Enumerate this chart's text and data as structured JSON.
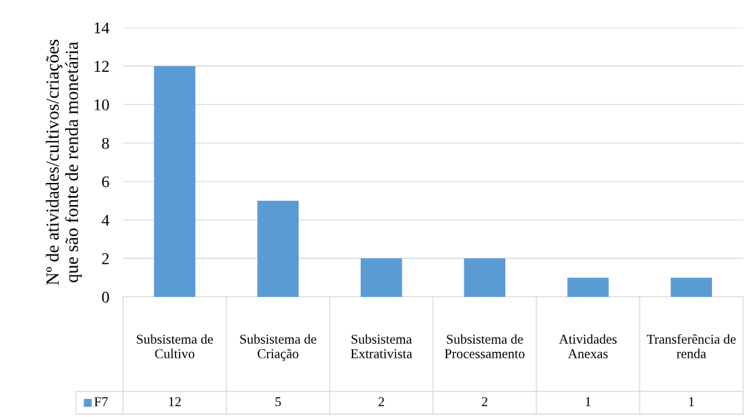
{
  "chart_data": {
    "type": "bar",
    "ylabel": "Nº de atividades/cultivos/criações\nque são fonte de renda monetária",
    "categories": [
      "Subsistema de Cultivo",
      "Subsistema de Criação",
      "Subsistema Extrativista",
      "Subsistema de Processamento",
      "Atividades Anexas",
      "Transferência de renda"
    ],
    "series": [
      {
        "name": "F7",
        "color": "#5b9bd5",
        "values": [
          12,
          5,
          2,
          2,
          1,
          1
        ]
      }
    ],
    "ylim": [
      0,
      14
    ],
    "yticks": [
      0,
      2,
      4,
      6,
      8,
      10,
      12,
      14
    ],
    "grid": "y",
    "data_labels": true,
    "legend": "bottom"
  }
}
